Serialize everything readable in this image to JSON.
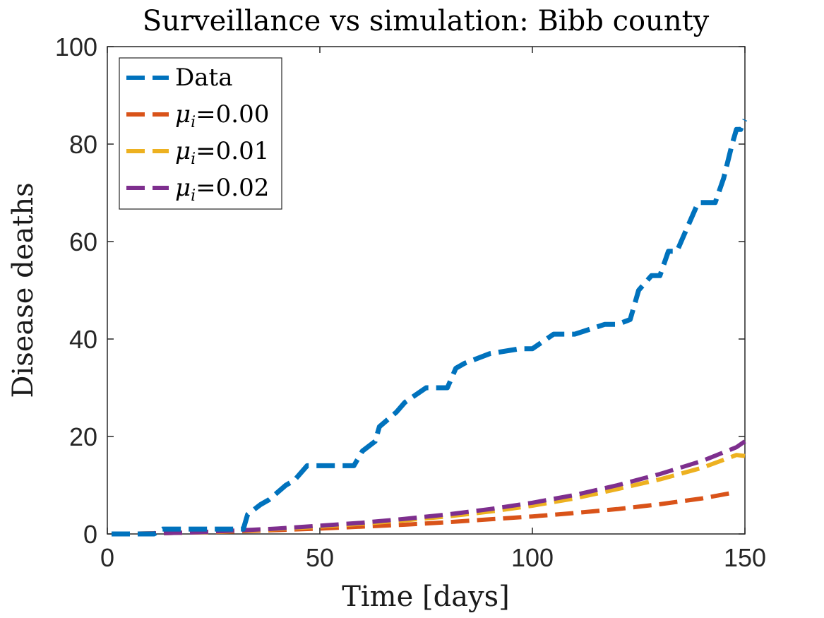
{
  "chart_data": {
    "type": "line",
    "title": "Surveillance vs simulation: Bibb county",
    "xlabel": "Time [days]",
    "ylabel": "Disease deaths",
    "xlim": [
      0,
      150
    ],
    "ylim": [
      0,
      100
    ],
    "xticks": [
      0,
      50,
      100,
      150
    ],
    "yticks": [
      0,
      20,
      40,
      60,
      80,
      100
    ],
    "legend_position": "top-left",
    "series": [
      {
        "name": "Data",
        "label_main": "Data",
        "label_sub": "",
        "label_value": "",
        "color": "#0072BD",
        "x": [
          1,
          11,
          13,
          32,
          33,
          36,
          38,
          42,
          44,
          47,
          58,
          60,
          63,
          64,
          68,
          70,
          75,
          80,
          82,
          84,
          87,
          90,
          97,
          100,
          105,
          110,
          117,
          120,
          123,
          125,
          128,
          130,
          132,
          134,
          136,
          139,
          141,
          143,
          145,
          147,
          148,
          149,
          150
        ],
        "y": [
          0,
          0,
          1,
          1,
          4,
          6,
          7,
          10,
          11,
          14,
          14,
          17,
          19,
          22,
          25,
          27,
          30,
          30,
          34,
          35,
          36,
          37,
          38,
          38,
          41,
          41,
          43,
          43,
          44,
          50,
          53,
          53,
          58,
          58,
          62,
          68,
          68,
          68,
          73,
          80,
          83,
          83,
          85
        ]
      },
      {
        "name": "μi=0.00",
        "label_main": "μ",
        "label_sub": "i",
        "label_value": "=0.00",
        "color": "#D95319",
        "x": [
          1,
          10,
          20,
          30,
          40,
          50,
          60,
          70,
          80,
          90,
          100,
          110,
          120,
          130,
          140,
          148
        ],
        "y": [
          0,
          0.1,
          0.3,
          0.5,
          0.8,
          1.1,
          1.5,
          1.9,
          2.4,
          3.0,
          3.6,
          4.3,
          5.1,
          6.1,
          7.3,
          8.6
        ]
      },
      {
        "name": "μi=0.01",
        "label_main": "μ",
        "label_sub": "i",
        "label_value": "=0.01",
        "color": "#EDB120",
        "x": [
          1,
          10,
          20,
          30,
          40,
          50,
          60,
          70,
          80,
          90,
          100,
          110,
          120,
          130,
          140,
          148,
          150
        ],
        "y": [
          0,
          0.1,
          0.3,
          0.6,
          1.0,
          1.5,
          2.1,
          2.8,
          3.6,
          4.6,
          5.8,
          7.3,
          9.2,
          11.2,
          13.6,
          16.2,
          16.0
        ]
      },
      {
        "name": "μi=0.02",
        "label_main": "μ",
        "label_sub": "i",
        "label_value": "=0.02",
        "color": "#7E2F8E",
        "x": [
          1,
          10,
          20,
          30,
          40,
          50,
          60,
          70,
          80,
          90,
          100,
          110,
          120,
          130,
          140,
          148,
          150
        ],
        "y": [
          0,
          0.1,
          0.3,
          0.7,
          1.1,
          1.7,
          2.3,
          3.1,
          4.0,
          5.1,
          6.4,
          8.0,
          10.0,
          12.3,
          15.0,
          17.8,
          19.0
        ]
      }
    ]
  }
}
